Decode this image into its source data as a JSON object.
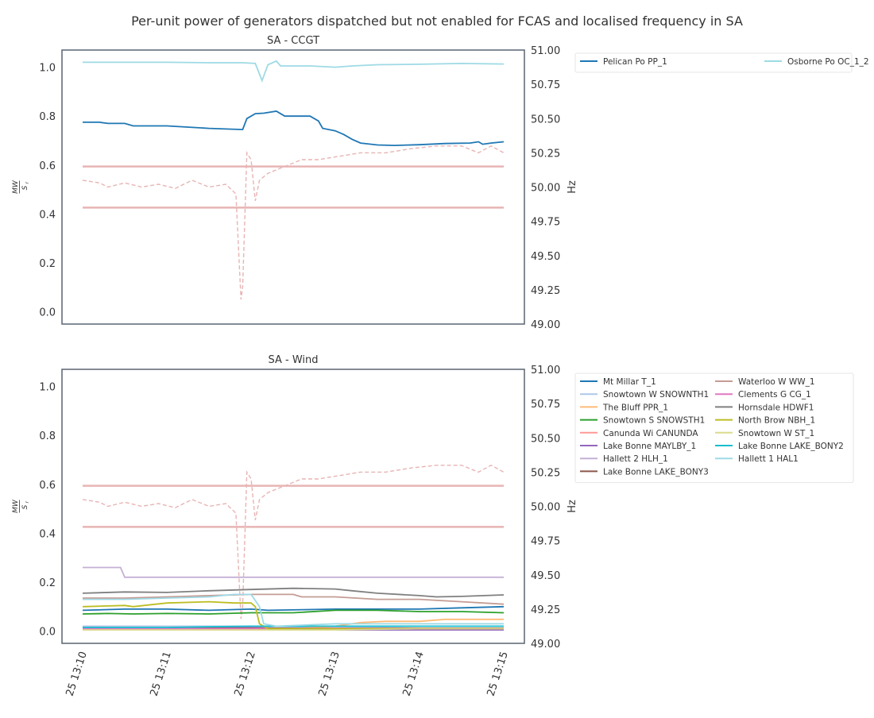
{
  "figure": {
    "title": "Per-unit power of generators dispatched but not enabled for FCAS and localised frequency in SA"
  },
  "x_axis": {
    "tick_labels": [
      "25 13:10",
      "25 13:11",
      "25 13:12",
      "25 13:13",
      "25 13:14",
      "25 13:15"
    ],
    "range_minutes": [
      0,
      5
    ]
  },
  "colors": {
    "frequency": "#e8b4b4",
    "band": "#e8b4b4",
    "axes_frame": "#5a6470"
  },
  "chart_data": [
    {
      "type": "line",
      "title": "SA - CCGT",
      "ylabel": "MW / S_r",
      "ylabel_num": "MW",
      "ylabel_den": "S",
      "ylabel_sub": "r",
      "y2label": "Hz",
      "ylim": [
        -0.05,
        1.07
      ],
      "y2lim": [
        49.0,
        51.0
      ],
      "yticks": [
        "0.0",
        "0.2",
        "0.4",
        "0.6",
        "0.8",
        "1.0"
      ],
      "y2ticks": [
        "49.00",
        "49.25",
        "49.50",
        "49.75",
        "50.00",
        "50.25",
        "50.50",
        "50.75",
        "51.00"
      ],
      "grid": false,
      "legend_placement": "outside-right",
      "legend_columns": 2,
      "bands": [
        49.85,
        50.15
      ],
      "series": [
        {
          "name": "Pelican Po PP_1",
          "color": "#1f77b4",
          "points": [
            [
              0,
              0.775
            ],
            [
              0.2,
              0.775
            ],
            [
              0.3,
              0.77
            ],
            [
              0.5,
              0.77
            ],
            [
              0.6,
              0.76
            ],
            [
              1.0,
              0.76
            ],
            [
              1.5,
              0.75
            ],
            [
              1.9,
              0.745
            ],
            [
              1.95,
              0.79
            ],
            [
              2.05,
              0.81
            ],
            [
              2.15,
              0.812
            ],
            [
              2.3,
              0.82
            ],
            [
              2.4,
              0.8
            ],
            [
              2.7,
              0.8
            ],
            [
              2.8,
              0.78
            ],
            [
              2.85,
              0.75
            ],
            [
              3.0,
              0.74
            ],
            [
              3.1,
              0.725
            ],
            [
              3.2,
              0.705
            ],
            [
              3.3,
              0.69
            ],
            [
              3.5,
              0.682
            ],
            [
              3.7,
              0.68
            ],
            [
              4.0,
              0.683
            ],
            [
              4.3,
              0.688
            ],
            [
              4.6,
              0.69
            ],
            [
              4.7,
              0.695
            ],
            [
              4.75,
              0.685
            ],
            [
              4.85,
              0.69
            ],
            [
              5.0,
              0.695
            ]
          ]
        },
        {
          "name": "Osborne Po OC_1_2",
          "color": "#9edae5",
          "points": [
            [
              0,
              1.02
            ],
            [
              0.5,
              1.02
            ],
            [
              1.0,
              1.02
            ],
            [
              1.5,
              1.018
            ],
            [
              1.9,
              1.018
            ],
            [
              2.05,
              1.015
            ],
            [
              2.13,
              0.945
            ],
            [
              2.2,
              1.01
            ],
            [
              2.3,
              1.025
            ],
            [
              2.35,
              1.005
            ],
            [
              2.6,
              1.005
            ],
            [
              2.7,
              1.005
            ],
            [
              3.0,
              1.0
            ],
            [
              3.2,
              1.005
            ],
            [
              3.5,
              1.01
            ],
            [
              4.0,
              1.012
            ],
            [
              4.5,
              1.015
            ],
            [
              5.0,
              1.013
            ]
          ]
        }
      ],
      "frequency": {
        "name": "Frequency",
        "points": [
          [
            0,
            50.05
          ],
          [
            0.2,
            50.03
          ],
          [
            0.3,
            50.0
          ],
          [
            0.5,
            50.03
          ],
          [
            0.7,
            50.0
          ],
          [
            0.9,
            50.02
          ],
          [
            1.1,
            49.99
          ],
          [
            1.3,
            50.05
          ],
          [
            1.5,
            50.0
          ],
          [
            1.7,
            50.02
          ],
          [
            1.82,
            49.95
          ],
          [
            1.88,
            49.18
          ],
          [
            1.9,
            49.27
          ],
          [
            1.95,
            50.25
          ],
          [
            2.0,
            50.2
          ],
          [
            2.05,
            49.9
          ],
          [
            2.1,
            50.05
          ],
          [
            2.2,
            50.1
          ],
          [
            2.4,
            50.15
          ],
          [
            2.6,
            50.2
          ],
          [
            2.8,
            50.2
          ],
          [
            3.0,
            50.22
          ],
          [
            3.3,
            50.25
          ],
          [
            3.6,
            50.25
          ],
          [
            3.9,
            50.28
          ],
          [
            4.2,
            50.3
          ],
          [
            4.5,
            50.3
          ],
          [
            4.7,
            50.25
          ],
          [
            4.85,
            50.3
          ],
          [
            5.0,
            50.25
          ]
        ]
      }
    },
    {
      "type": "line",
      "title": "SA - Wind",
      "ylabel": "MW / S_r",
      "ylabel_num": "MW",
      "ylabel_den": "S",
      "ylabel_sub": "r",
      "y2label": "Hz",
      "ylim": [
        -0.05,
        1.07
      ],
      "y2lim": [
        49.0,
        51.0
      ],
      "yticks": [
        "0.0",
        "0.2",
        "0.4",
        "0.6",
        "0.8",
        "1.0"
      ],
      "y2ticks": [
        "49.00",
        "49.25",
        "49.50",
        "49.75",
        "50.00",
        "50.25",
        "50.50",
        "50.75",
        "51.00"
      ],
      "grid": false,
      "legend_placement": "outside-right",
      "legend_columns": 2,
      "bands": [
        49.85,
        50.15
      ],
      "series": [
        {
          "name": "Mt Millar  T_1",
          "color": "#1f77b4",
          "points": [
            [
              0,
              0.085
            ],
            [
              0.5,
              0.09
            ],
            [
              1.0,
              0.09
            ],
            [
              1.5,
              0.085
            ],
            [
              2.0,
              0.09
            ],
            [
              2.2,
              0.085
            ],
            [
              3.0,
              0.09
            ],
            [
              4.0,
              0.09
            ],
            [
              4.5,
              0.095
            ],
            [
              5.0,
              0.1
            ]
          ]
        },
        {
          "name": "Snowtown W SNOWNTH1",
          "color": "#aec7e8",
          "points": [
            [
              0,
              0.02
            ],
            [
              1.0,
              0.02
            ],
            [
              2.0,
              0.02
            ],
            [
              3.0,
              0.015
            ],
            [
              4.0,
              0.02
            ],
            [
              5.0,
              0.02
            ]
          ]
        },
        {
          "name": "The Bluff  PPR_1",
          "color": "#ffbb78",
          "points": [
            [
              0,
              0.005
            ],
            [
              1.0,
              0.01
            ],
            [
              2.0,
              0.01
            ],
            [
              2.5,
              0.01
            ],
            [
              3.0,
              0.02
            ],
            [
              3.3,
              0.035
            ],
            [
              3.6,
              0.04
            ],
            [
              4.0,
              0.04
            ],
            [
              4.3,
              0.048
            ],
            [
              5.0,
              0.048
            ]
          ]
        },
        {
          "name": "Snowtown S SNOWSTH1",
          "color": "#2ca02c",
          "points": [
            [
              0,
              0.07
            ],
            [
              0.3,
              0.072
            ],
            [
              0.6,
              0.07
            ],
            [
              1.0,
              0.072
            ],
            [
              1.5,
              0.07
            ],
            [
              2.0,
              0.075
            ],
            [
              2.5,
              0.075
            ],
            [
              3.0,
              0.085
            ],
            [
              3.5,
              0.085
            ],
            [
              4.0,
              0.08
            ],
            [
              4.5,
              0.08
            ],
            [
              5.0,
              0.075
            ]
          ]
        },
        {
          "name": "Canunda Wi CANUNDA",
          "color": "#ff9896",
          "points": [
            [
              0,
              0.01
            ],
            [
              1.0,
              0.012
            ],
            [
              2.0,
              0.01
            ],
            [
              3.0,
              0.01
            ],
            [
              4.0,
              0.012
            ],
            [
              5.0,
              0.01
            ]
          ]
        },
        {
          "name": "Lake Bonne MAYLBY_1",
          "color": "#9467bd",
          "points": [
            [
              0,
              0.015
            ],
            [
              1.0,
              0.012
            ],
            [
              2.0,
              0.015
            ],
            [
              3.0,
              0.005
            ],
            [
              4.0,
              0.005
            ],
            [
              5.0,
              0.005
            ]
          ]
        },
        {
          "name": "Hallett 2  HLH_1",
          "color": "#c5b0d5",
          "points": [
            [
              0,
              0.26
            ],
            [
              0.45,
              0.26
            ],
            [
              0.5,
              0.22
            ],
            [
              5.0,
              0.22
            ]
          ]
        },
        {
          "name": "Lake Bonne LAKE_BONY3",
          "color": "#8c564b",
          "points": [
            [
              0,
              0.012
            ],
            [
              1.0,
              0.012
            ],
            [
              2.0,
              0.012
            ],
            [
              3.0,
              0.012
            ],
            [
              4.0,
              0.012
            ],
            [
              5.0,
              0.012
            ]
          ]
        },
        {
          "name": "Waterloo W WW_1",
          "color": "#c49c94",
          "points": [
            [
              0,
              0.135
            ],
            [
              0.5,
              0.135
            ],
            [
              1.0,
              0.14
            ],
            [
              1.5,
              0.145
            ],
            [
              2.0,
              0.15
            ],
            [
              2.5,
              0.15
            ],
            [
              2.6,
              0.14
            ],
            [
              3.0,
              0.14
            ],
            [
              3.5,
              0.13
            ],
            [
              4.0,
              0.13
            ],
            [
              4.5,
              0.12
            ],
            [
              5.0,
              0.11
            ]
          ]
        },
        {
          "name": "Clements G CG_1",
          "color": "#e377c2",
          "points": [
            [
              0,
              0.01
            ],
            [
              1.0,
              0.01
            ],
            [
              2.0,
              0.01
            ],
            [
              3.0,
              0.012
            ],
            [
              4.0,
              0.01
            ],
            [
              5.0,
              0.01
            ]
          ]
        },
        {
          "name": "Hornsdale  HDWF1",
          "color": "#7f7f7f",
          "points": [
            [
              0,
              0.155
            ],
            [
              0.5,
              0.16
            ],
            [
              1.0,
              0.158
            ],
            [
              1.5,
              0.165
            ],
            [
              2.0,
              0.17
            ],
            [
              2.5,
              0.175
            ],
            [
              3.0,
              0.172
            ],
            [
              3.2,
              0.165
            ],
            [
              3.5,
              0.155
            ],
            [
              4.0,
              0.145
            ],
            [
              4.2,
              0.14
            ],
            [
              4.5,
              0.142
            ],
            [
              5.0,
              0.148
            ]
          ]
        },
        {
          "name": "North Brow NBH_1",
          "color": "#bcbd22",
          "points": [
            [
              0,
              0.1
            ],
            [
              0.5,
              0.105
            ],
            [
              0.6,
              0.1
            ],
            [
              1.0,
              0.115
            ],
            [
              1.5,
              0.12
            ],
            [
              1.8,
              0.115
            ],
            [
              2.0,
              0.115
            ],
            [
              2.05,
              0.1
            ],
            [
              2.1,
              0.03
            ],
            [
              2.2,
              0.01
            ],
            [
              3.0,
              0.01
            ],
            [
              4.0,
              0.01
            ],
            [
              5.0,
              0.01
            ]
          ]
        },
        {
          "name": "Snowtown W ST_1",
          "color": "#dbdb8d",
          "points": [
            [
              0,
              0.005
            ],
            [
              1.0,
              0.005
            ],
            [
              2.0,
              0.005
            ],
            [
              3.0,
              0.005
            ],
            [
              4.0,
              0.01
            ],
            [
              5.0,
              0.01
            ]
          ]
        },
        {
          "name": "Lake Bonne LAKE_BONY2",
          "color": "#17becf",
          "points": [
            [
              0,
              0.015
            ],
            [
              1.0,
              0.015
            ],
            [
              2.0,
              0.02
            ],
            [
              3.0,
              0.02
            ],
            [
              4.0,
              0.02
            ],
            [
              5.0,
              0.02
            ]
          ]
        },
        {
          "name": "Hallett 1  HAL1",
          "color": "#9edae5",
          "points": [
            [
              0,
              0.13
            ],
            [
              0.5,
              0.13
            ],
            [
              1.0,
              0.135
            ],
            [
              1.5,
              0.14
            ],
            [
              1.8,
              0.15
            ],
            [
              2.0,
              0.15
            ],
            [
              2.1,
              0.1
            ],
            [
              2.15,
              0.03
            ],
            [
              2.3,
              0.02
            ],
            [
              3.0,
              0.03
            ],
            [
              4.0,
              0.03
            ],
            [
              5.0,
              0.03
            ]
          ]
        }
      ],
      "frequency": {
        "name": "Frequency",
        "points": [
          [
            0,
            50.05
          ],
          [
            0.2,
            50.03
          ],
          [
            0.3,
            50.0
          ],
          [
            0.5,
            50.03
          ],
          [
            0.7,
            50.0
          ],
          [
            0.9,
            50.02
          ],
          [
            1.1,
            49.99
          ],
          [
            1.3,
            50.05
          ],
          [
            1.5,
            50.0
          ],
          [
            1.7,
            50.02
          ],
          [
            1.82,
            49.95
          ],
          [
            1.88,
            49.18
          ],
          [
            1.9,
            49.27
          ],
          [
            1.95,
            50.25
          ],
          [
            2.0,
            50.2
          ],
          [
            2.05,
            49.9
          ],
          [
            2.1,
            50.05
          ],
          [
            2.2,
            50.1
          ],
          [
            2.4,
            50.15
          ],
          [
            2.6,
            50.2
          ],
          [
            2.8,
            50.2
          ],
          [
            3.0,
            50.22
          ],
          [
            3.3,
            50.25
          ],
          [
            3.6,
            50.25
          ],
          [
            3.9,
            50.28
          ],
          [
            4.2,
            50.3
          ],
          [
            4.5,
            50.3
          ],
          [
            4.7,
            50.25
          ],
          [
            4.85,
            50.3
          ],
          [
            5.0,
            50.25
          ]
        ]
      }
    }
  ]
}
